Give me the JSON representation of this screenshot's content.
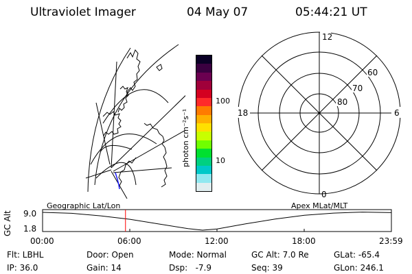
{
  "header": {
    "instrument": "Ultraviolet Imager",
    "date": "04 May 07",
    "time": "05:44:21 UT"
  },
  "colorbar": {
    "unit_label": "photon cm⁻²s⁻¹",
    "tick_labels": [
      "100",
      "10"
    ],
    "colors": [
      "#0a0026",
      "#3a0040",
      "#6b0050",
      "#a0003a",
      "#d40020",
      "#ff2a2a",
      "#ff7b00",
      "#ffb000",
      "#ffe000",
      "#c8ff00",
      "#70ff00",
      "#00e030",
      "#00d080",
      "#00c8c8",
      "#90e8f0",
      "#e0eef0"
    ]
  },
  "polar_plot": {
    "mlt_labels": [
      "12",
      "18",
      "6",
      "0"
    ],
    "lat_labels": [
      "60",
      "70",
      "80"
    ]
  },
  "timeline": {
    "y_axis_label": "GC Alt",
    "y_tick_labels": [
      "9.0",
      "1.8"
    ],
    "left_caption": "Geographic Lat/Lon",
    "right_caption": "Apex MLat/MLT",
    "x_tick_labels": [
      "00:00",
      "06:00",
      "12:00",
      "18:00",
      "23:59"
    ],
    "current_marker_fraction": 0.2377,
    "altitude_series": {
      "unit": "Re",
      "points": [
        [
          0,
          9.0
        ],
        [
          2,
          8.6
        ],
        [
          4,
          7.6
        ],
        [
          6,
          6.2
        ],
        [
          8,
          4.3
        ],
        [
          10,
          2.4
        ],
        [
          11,
          1.8
        ],
        [
          12,
          2.3
        ],
        [
          14,
          4.4
        ],
        [
          16,
          6.3
        ],
        [
          18,
          7.8
        ],
        [
          20,
          8.7
        ],
        [
          22,
          9.1
        ],
        [
          23.98,
          8.9
        ]
      ]
    }
  },
  "status": {
    "row1": [
      {
        "name": "filter",
        "text": "Flt: LBHL"
      },
      {
        "name": "door",
        "text": "Door: Open"
      },
      {
        "name": "mode",
        "text": "Mode: Normal"
      },
      {
        "name": "gc-alt",
        "text": "GC Alt: 7.0 Re"
      },
      {
        "name": "glat",
        "text": "GLat: -65.4"
      }
    ],
    "row2": [
      {
        "name": "ip",
        "text": "IP: 36.0"
      },
      {
        "name": "gain",
        "text": "Gain: 14"
      },
      {
        "name": "dsp",
        "text": "Dsp:   -7.9"
      },
      {
        "name": "seq",
        "text": "Seq: 39"
      },
      {
        "name": "glon",
        "text": "GLon: 246.1"
      }
    ]
  },
  "colors": {
    "marker": "#ff0000",
    "track": "#000000",
    "coast_highlight": "#1a1aff"
  }
}
